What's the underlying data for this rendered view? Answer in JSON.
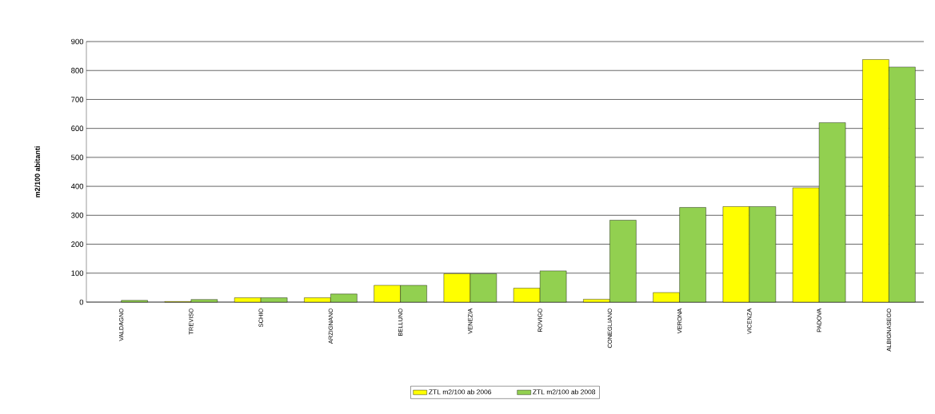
{
  "chart_data": {
    "type": "bar",
    "ylabel": "m2/100 abitanti",
    "categories": [
      "VALDAGNO",
      "TREVISO",
      "SCHIO",
      "ARZIGNANO",
      "BELLUNO",
      "VENEZIA",
      "ROVIGO",
      "CONEGLIANO",
      "VERONA",
      "VICENZA",
      "PADOVA",
      "ALBIGNASEGO"
    ],
    "series": [
      {
        "name": "ZTL m2/100 ab 2006",
        "color": "#ffff00",
        "values": [
          null,
          2,
          15,
          15,
          58,
          98,
          48,
          10,
          33,
          330,
          395,
          838
        ]
      },
      {
        "name": "ZTL m2/100 ab 2008",
        "color": "#92d050",
        "values": [
          6,
          9,
          15,
          28,
          58,
          98,
          108,
          283,
          327,
          330,
          620,
          812
        ]
      }
    ],
    "ylim": [
      0,
      900
    ],
    "yticks": [
      0,
      100,
      200,
      300,
      400,
      500,
      600,
      700,
      800,
      900
    ],
    "grid": "y",
    "legend": "bottom"
  }
}
